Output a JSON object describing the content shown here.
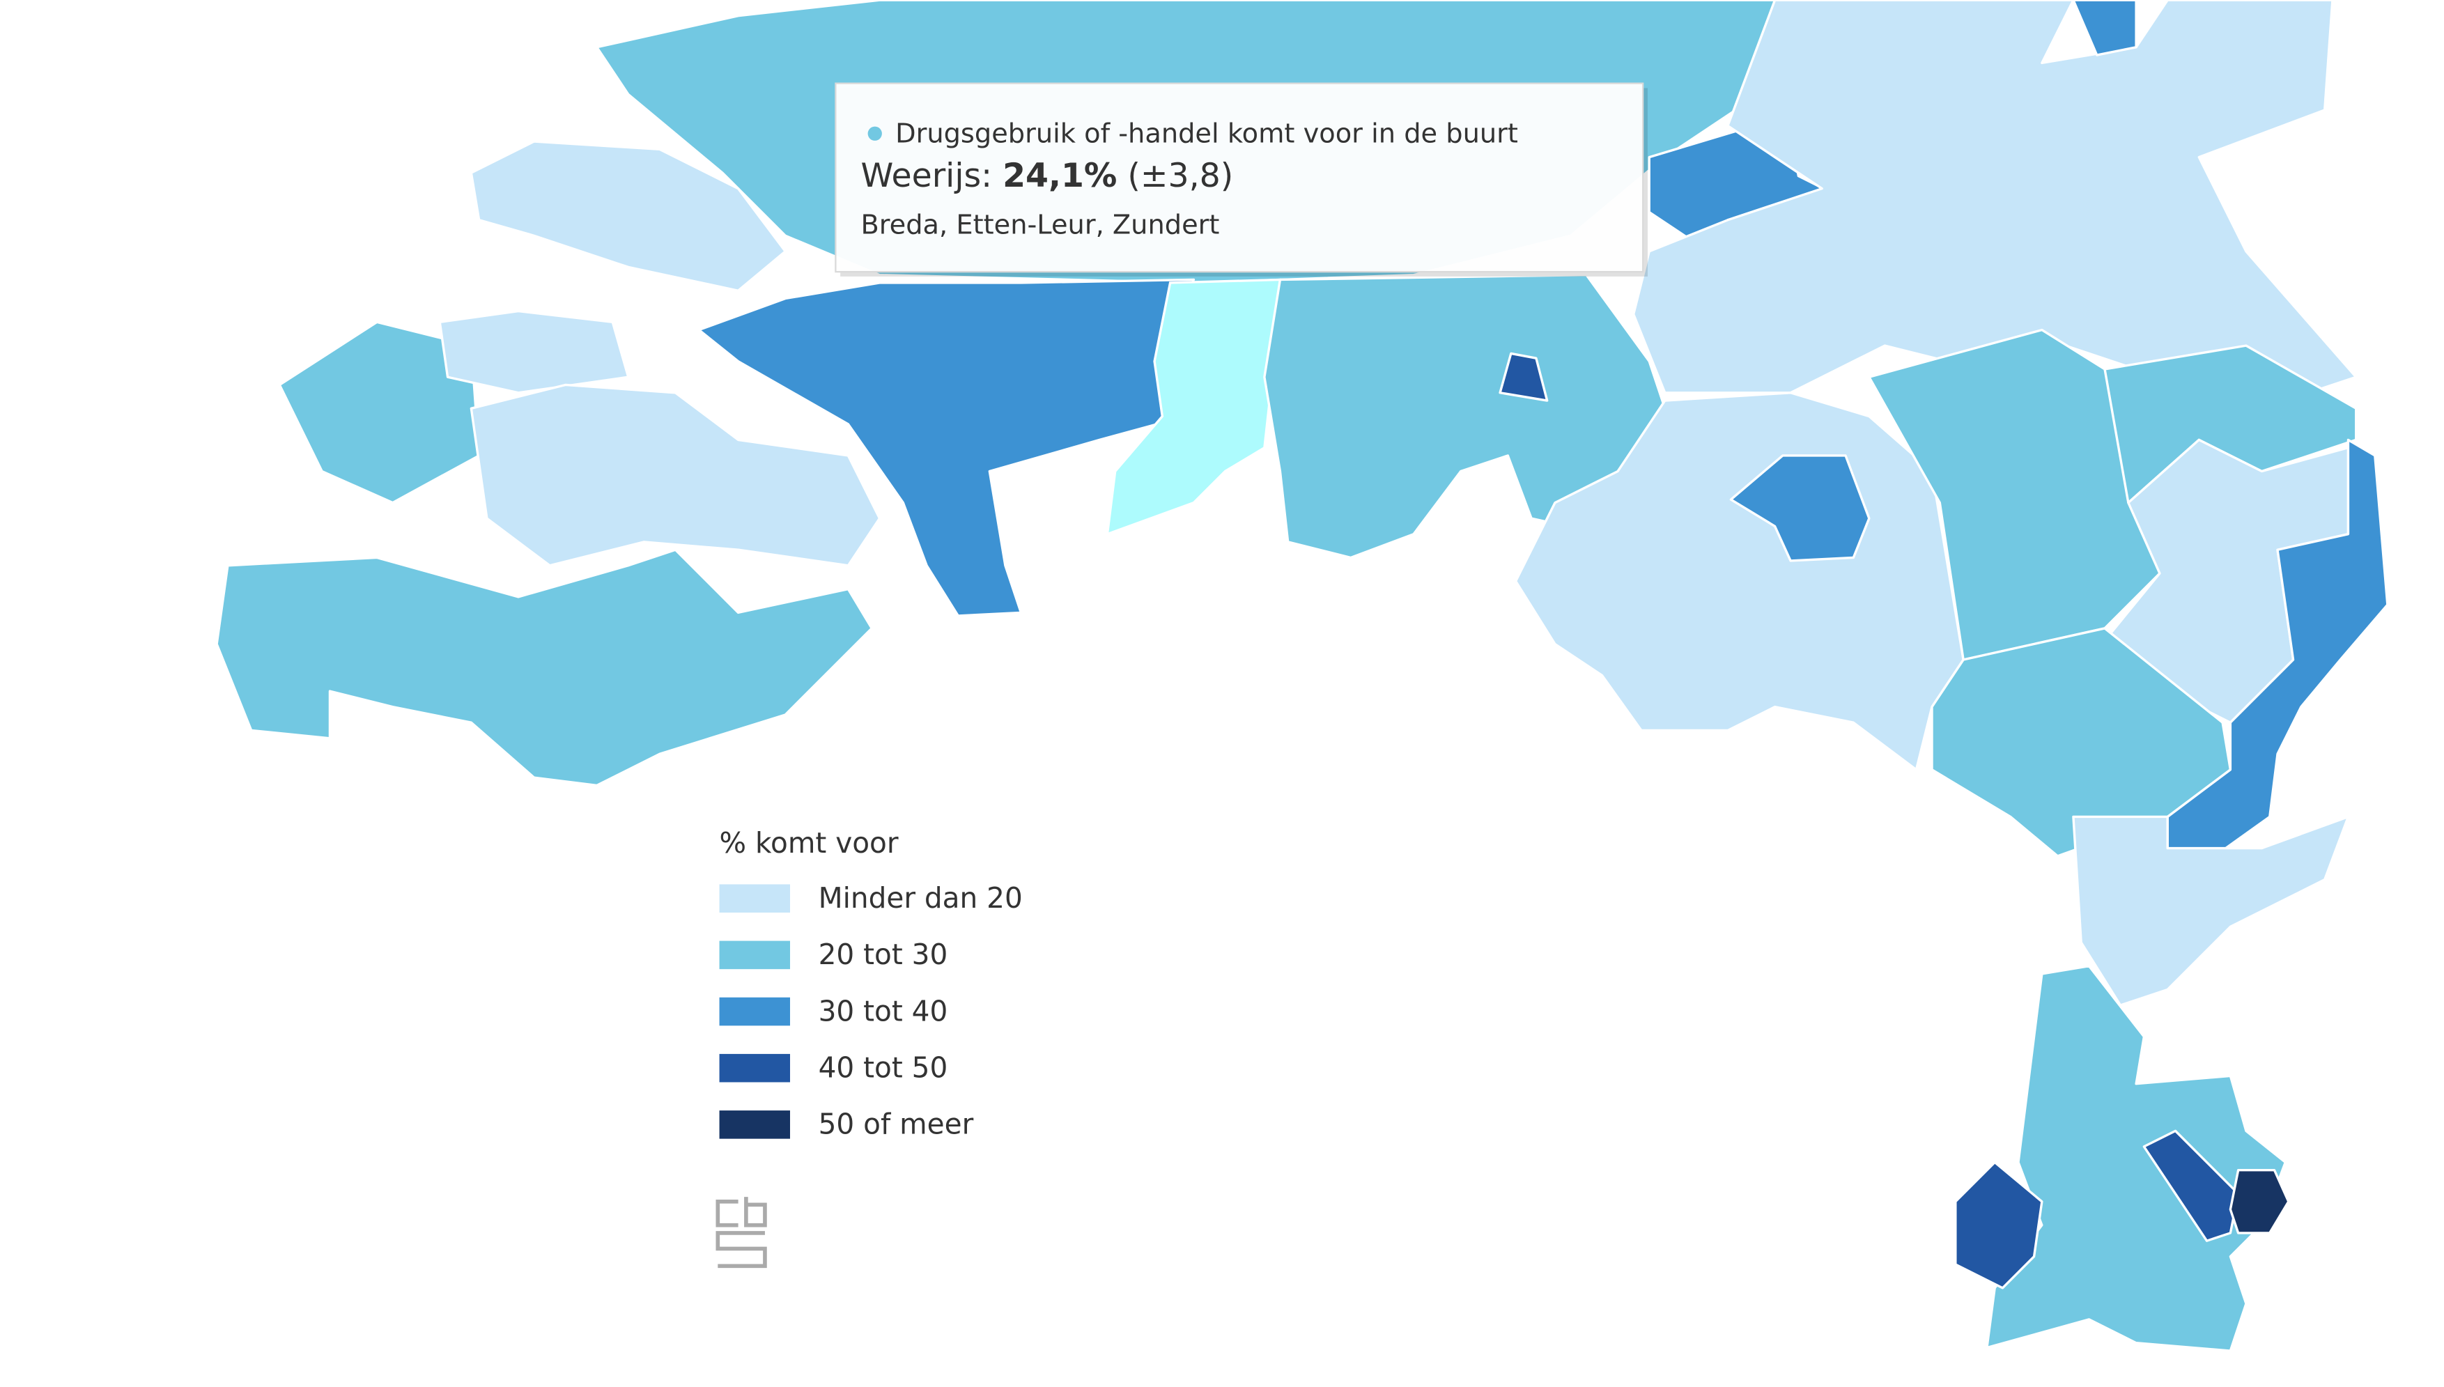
{
  "tooltip": {
    "series": "Drugsgebruik of -handel komt voor in de buurt",
    "region": "Weerijs:",
    "value": "24,1%",
    "margin": "(±3,8)",
    "location": "Breda, Etten-Leur, Zundert"
  },
  "legend": {
    "title": "% komt voor",
    "items": [
      {
        "label": "Minder dan 20",
        "color": "#c6e5f9"
      },
      {
        "label": "20 tot 30",
        "color": "#72c8e2"
      },
      {
        "label": "30 tot 40",
        "color": "#3d92d3"
      },
      {
        "label": "40 tot 50",
        "color": "#2257a3"
      },
      {
        "label": "50 of meer",
        "color": "#173463"
      }
    ]
  }
}
